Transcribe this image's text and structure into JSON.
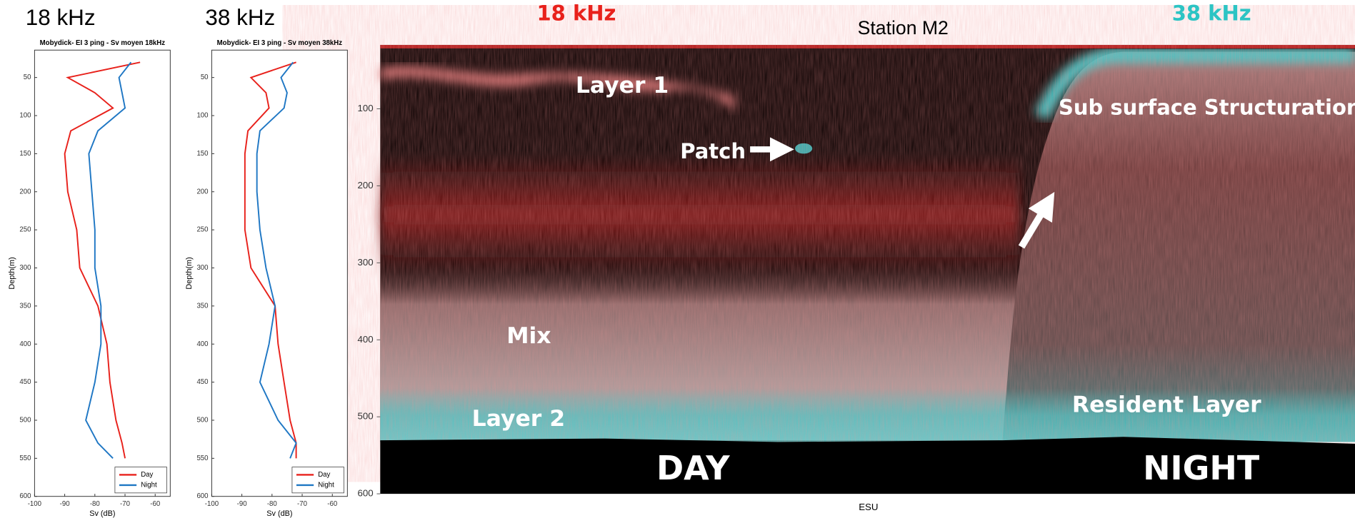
{
  "chart_data": [
    {
      "type": "line",
      "header": "18 kHz",
      "title": "Mobydick- EI 3 ping - Sv moyen 18kHz",
      "xlabel": "Sv (dB)",
      "ylabel": "Depth(m)",
      "xlim": [
        -100,
        -55
      ],
      "xticks": [
        -100,
        -90,
        -80,
        -70,
        -60
      ],
      "ylim": [
        14,
        600
      ],
      "yticks": [
        50,
        100,
        150,
        200,
        250,
        300,
        350,
        400,
        450,
        500,
        550,
        600
      ],
      "y_inverted": true,
      "legend": "lower right",
      "y": [
        30,
        50,
        70,
        90,
        120,
        150,
        200,
        250,
        300,
        350,
        400,
        450,
        500,
        530,
        550
      ],
      "series": [
        {
          "name": "Day",
          "color": "#e8211b",
          "values": [
            -65,
            -89,
            -80,
            -74,
            -88,
            -90,
            -89,
            -86,
            -85,
            -79,
            -76,
            -75,
            -73,
            -71,
            -70
          ]
        },
        {
          "name": "Night",
          "color": "#1f77c4",
          "values": [
            -68,
            -72,
            -71,
            -70,
            -79,
            -82,
            -81,
            -80,
            -80,
            -78,
            -78,
            -80,
            -83,
            -79,
            -74
          ]
        }
      ]
    },
    {
      "type": "line",
      "header": "38 kHz",
      "title": "Mobydick- EI 3 ping - Sv moyen 38kHz",
      "xlabel": "Sv (dB)",
      "ylabel": "Depth(m)",
      "xlim": [
        -100,
        -55
      ],
      "xticks": [
        -100,
        -90,
        -80,
        -70,
        -60
      ],
      "ylim": [
        14,
        600
      ],
      "yticks": [
        50,
        100,
        150,
        200,
        250,
        300,
        350,
        400,
        450,
        500,
        550,
        600
      ],
      "y_inverted": true,
      "legend": "lower right",
      "y": [
        30,
        50,
        70,
        90,
        120,
        150,
        200,
        250,
        300,
        350,
        400,
        450,
        500,
        530,
        550
      ],
      "series": [
        {
          "name": "Day",
          "color": "#e8211b",
          "values": [
            -72,
            -87,
            -82,
            -81,
            -88,
            -89,
            -89,
            -89,
            -87,
            -79,
            -78,
            -76,
            -74,
            -72,
            -72
          ]
        },
        {
          "name": "Night",
          "color": "#1f77c4",
          "values": [
            -73,
            -77,
            -75,
            -76,
            -84,
            -85,
            -85,
            -84,
            -82,
            -79,
            -81,
            -84,
            -78,
            -72,
            -74
          ]
        }
      ]
    },
    {
      "type": "echogram",
      "title": "Station M2",
      "header_left": "18 kHz",
      "header_right": "38 kHz",
      "xlabel": "ESU",
      "ylim": [
        17,
        600
      ],
      "yticks": [
        100,
        200,
        300,
        400,
        500,
        600
      ],
      "y_inverted": true,
      "annotations": [
        "Layer 1",
        "Patch",
        "Mix",
        "Layer 2",
        "Sub surface Structuration",
        "Resident Layer",
        "DAY",
        "NIGHT"
      ]
    }
  ]
}
